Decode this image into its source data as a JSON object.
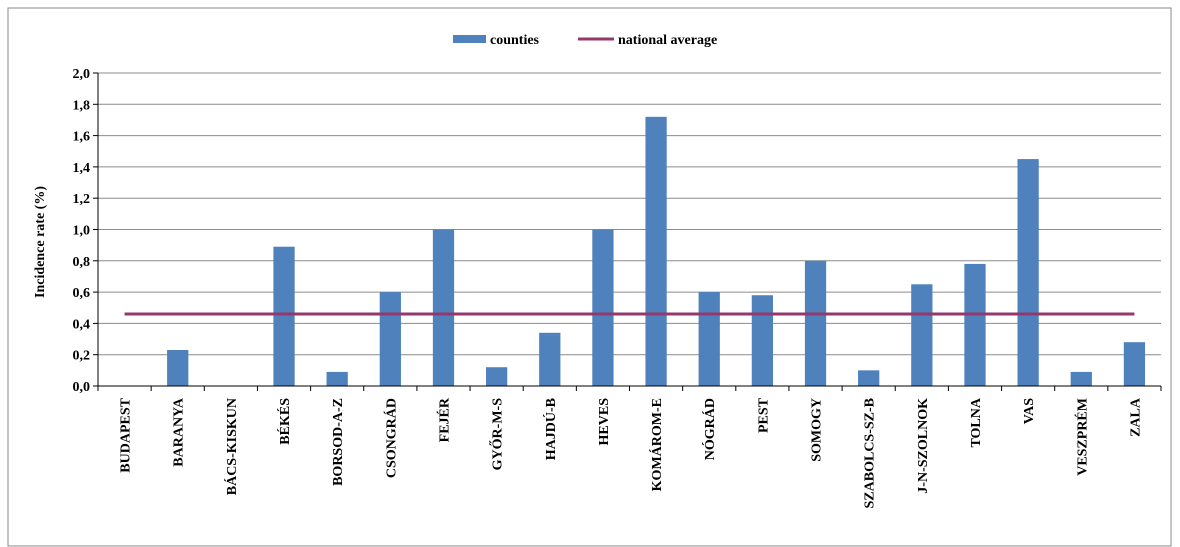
{
  "chart_data": {
    "type": "bar",
    "title": "",
    "xlabel": "",
    "ylabel": "Incidence rate (%)",
    "ylim": [
      0,
      2.0
    ],
    "ytick_step": 0.2,
    "ytick_labels": [
      "0,0",
      "0,2",
      "0,4",
      "0,6",
      "0,8",
      "1,0",
      "1,2",
      "1,4",
      "1,6",
      "1,8",
      "2,0"
    ],
    "grid": true,
    "legend": "top-center",
    "categories": [
      "BUDAPEST",
      "BARANYA",
      "BÁCS-KISKUN",
      "BÉKÉS",
      "BORSOD-A-Z",
      "CSONGRÁD",
      "FEJÉR",
      "GYŐR-M-S",
      "HAJDÚ-B",
      "HEVES",
      "KOMÁROM-E",
      "NÓGRÁD",
      "PEST",
      "SOMOGY",
      "SZABOLCS-SZ-B",
      "J-N-SZOLNOK",
      "TOLNA",
      "VAS",
      "VESZPRÉM",
      "ZALA"
    ],
    "series": [
      {
        "name": "counties",
        "kind": "bar",
        "color": "#4f81bd",
        "values": [
          0.0,
          0.23,
          0.0,
          0.89,
          0.09,
          0.6,
          1.0,
          0.12,
          0.34,
          1.0,
          1.72,
          0.6,
          0.58,
          0.8,
          0.1,
          0.65,
          0.78,
          1.45,
          0.09,
          0.28
        ]
      },
      {
        "name": "national average",
        "kind": "line",
        "color": "#93376d",
        "value": 0.46
      }
    ]
  }
}
